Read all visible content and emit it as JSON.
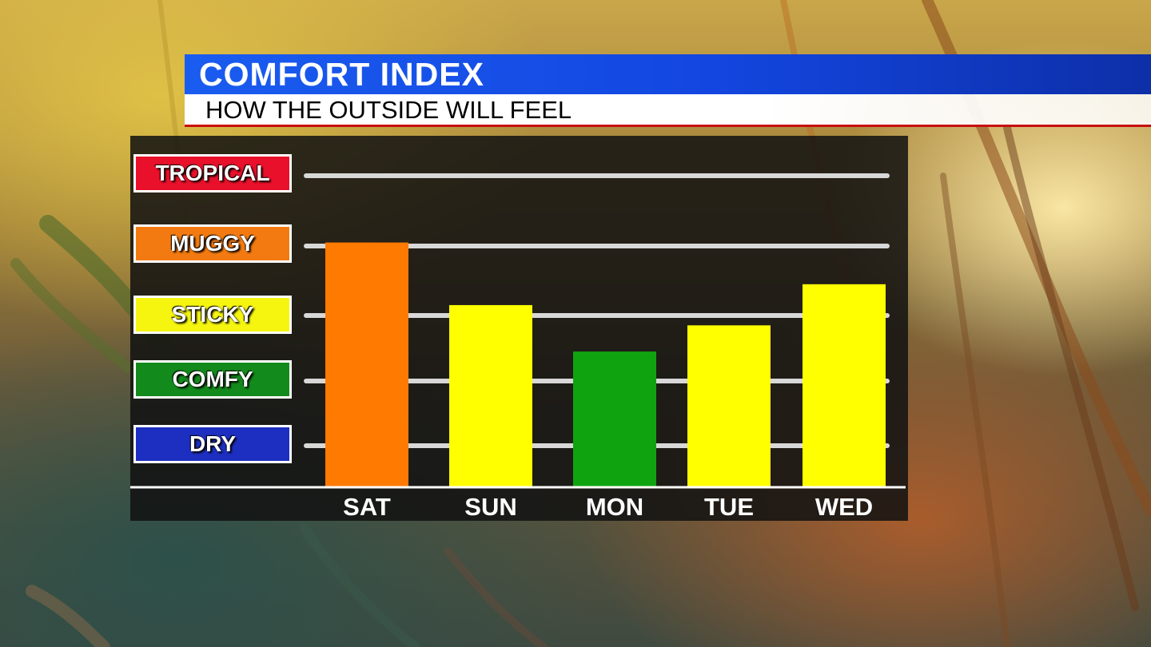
{
  "header": {
    "title": "COMFORT INDEX",
    "subtitle": "HOW THE OUTSIDE WILL FEEL"
  },
  "levels": [
    {
      "label": "TROPICAL",
      "color": "#e8102a"
    },
    {
      "label": "MUGGY",
      "color": "#f27a10"
    },
    {
      "label": "STICKY",
      "color": "#f5f510"
    },
    {
      "label": "COMFY",
      "color": "#138a1c"
    },
    {
      "label": "DRY",
      "color": "#1c2fc0"
    }
  ],
  "chart_data": {
    "type": "bar",
    "categories": [
      "SAT",
      "SUN",
      "MON",
      "TUE",
      "WED"
    ],
    "values": [
      3.05,
      2.15,
      1.45,
      1.85,
      2.45
    ],
    "colors": [
      "#ff7a00",
      "#ffff00",
      "#0fa30f",
      "#ffff00",
      "#ffff00"
    ],
    "y_levels": [
      "DRY",
      "COMFY",
      "STICKY",
      "MUGGY",
      "TROPICAL"
    ],
    "ylim": [
      -0.6,
      4
    ],
    "grid": true
  }
}
